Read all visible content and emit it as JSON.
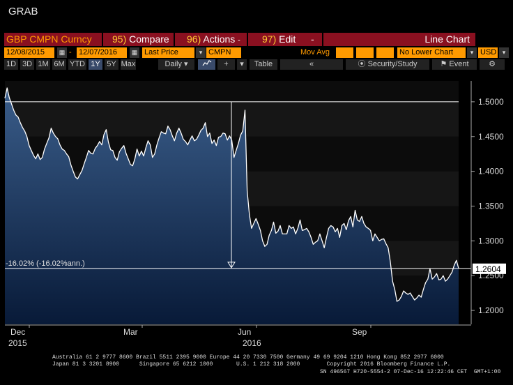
{
  "window_title": "GRAB",
  "toolbar": {
    "security": "GBP CMPN Curncy",
    "compare_num": "95)",
    "compare": "Compare",
    "actions_num": "96)",
    "actions": "Actions",
    "edit_num": "97)",
    "edit": "Edit",
    "chart_type": "Line Chart"
  },
  "settings": {
    "start_date": "12/08/2015",
    "end_date": "12/07/2016",
    "field": "Last Price",
    "ticker": "CMPN",
    "mov_avg_label": "Mov Avg",
    "lower_chart": "No Lower Chart",
    "currency": "USD"
  },
  "period_buttons": [
    "1D",
    "3D",
    "1M",
    "6M",
    "YTD",
    "1Y",
    "5Y",
    "Max"
  ],
  "selected_period": "1Y",
  "frequency": "Daily",
  "buttons": {
    "table": "Table",
    "back": "«",
    "security_study": "Security/Study",
    "event": "Event",
    "settings_icon": "gear-icon"
  },
  "chart_data": {
    "type": "area",
    "series": [
      {
        "values": [
          1.505,
          1.52,
          1.506,
          1.497,
          1.488,
          1.481,
          1.478,
          1.47,
          1.463,
          1.458,
          1.45,
          1.437,
          1.43,
          1.423,
          1.418,
          1.425,
          1.417,
          1.42,
          1.432,
          1.44,
          1.448,
          1.462,
          1.455,
          1.45,
          1.447,
          1.438,
          1.432,
          1.43,
          1.425,
          1.421,
          1.409,
          1.4,
          1.392,
          1.389,
          1.395,
          1.401,
          1.411,
          1.42,
          1.43,
          1.426,
          1.425,
          1.433,
          1.437,
          1.443,
          1.438,
          1.453,
          1.46,
          1.442,
          1.431,
          1.43,
          1.42,
          1.416,
          1.428,
          1.433,
          1.437,
          1.426,
          1.418,
          1.41,
          1.408,
          1.418,
          1.432,
          1.422,
          1.429,
          1.422,
          1.434,
          1.444,
          1.438,
          1.42,
          1.425,
          1.438,
          1.448,
          1.457,
          1.455,
          1.454,
          1.465,
          1.46,
          1.451,
          1.444,
          1.455,
          1.462,
          1.455,
          1.446,
          1.443,
          1.438,
          1.445,
          1.451,
          1.444,
          1.446,
          1.452,
          1.459,
          1.462,
          1.47,
          1.45,
          1.455,
          1.44,
          1.445,
          1.437,
          1.449,
          1.45,
          1.455,
          1.454,
          1.445,
          1.451,
          1.445,
          1.42,
          1.43,
          1.44,
          1.452,
          1.458,
          1.488,
          1.372,
          1.338,
          1.318,
          1.325,
          1.332,
          1.324,
          1.315,
          1.3,
          1.292,
          1.295,
          1.308,
          1.315,
          1.327,
          1.311,
          1.314,
          1.322,
          1.31,
          1.31,
          1.31,
          1.322,
          1.318,
          1.32,
          1.31,
          1.318,
          1.33,
          1.315,
          1.316,
          1.318,
          1.313,
          1.305,
          1.295,
          1.298,
          1.3,
          1.31,
          1.3,
          1.29,
          1.305,
          1.318,
          1.322,
          1.32,
          1.313,
          1.318,
          1.305,
          1.322,
          1.325,
          1.316,
          1.329,
          1.335,
          1.32,
          1.344,
          1.33,
          1.328,
          1.335,
          1.325,
          1.32,
          1.318,
          1.315,
          1.3,
          1.31,
          1.305,
          1.3,
          1.302,
          1.303,
          1.296,
          1.29,
          1.27,
          1.242,
          1.23,
          1.213,
          1.215,
          1.22,
          1.228,
          1.225,
          1.223,
          1.225,
          1.22,
          1.215,
          1.218,
          1.222,
          1.219,
          1.23,
          1.24,
          1.245,
          1.26,
          1.245,
          1.248,
          1.253,
          1.244,
          1.245,
          1.25,
          1.242,
          1.245,
          1.25,
          1.255,
          1.265,
          1.272,
          1.2604
        ]
      }
    ],
    "x_labels": [
      "Dec",
      "Mar",
      "Jun",
      "Sep"
    ],
    "year_labels": [
      "2015",
      "2016"
    ],
    "ylim": [
      1.18,
      1.53
    ],
    "yticks": [
      "1.2000",
      "1.2500",
      "1.3000",
      "1.3500",
      "1.4000",
      "1.4500",
      "1.5000"
    ],
    "last_value_label": "1.2604",
    "start_reference_level": 1.5,
    "last_reference_level": 1.2604,
    "change_annotation": "-16.02% (-16.02%ann.)",
    "colors": {
      "line": "#ffffff",
      "area_top": "#3a5d8a",
      "area_bottom": "#081a38",
      "background": "#000000"
    }
  },
  "footer": {
    "line1": "Australia 61 2 9777 8600 Brazil 5511 2395 9000 Europe 44 20 7330 7500 Germany 49 69 9204 1210 Hong Kong 852 2977 6000",
    "line2": "Japan 81 3 3201 8900      Singapore 65 6212 1000       U.S. 1 212 318 2000        Copyright 2016 Bloomberg Finance L.P.",
    "line3": "SN 496567 H720-5554-2 07-Dec-16 12:22:46 CET  GMT+1:00"
  }
}
